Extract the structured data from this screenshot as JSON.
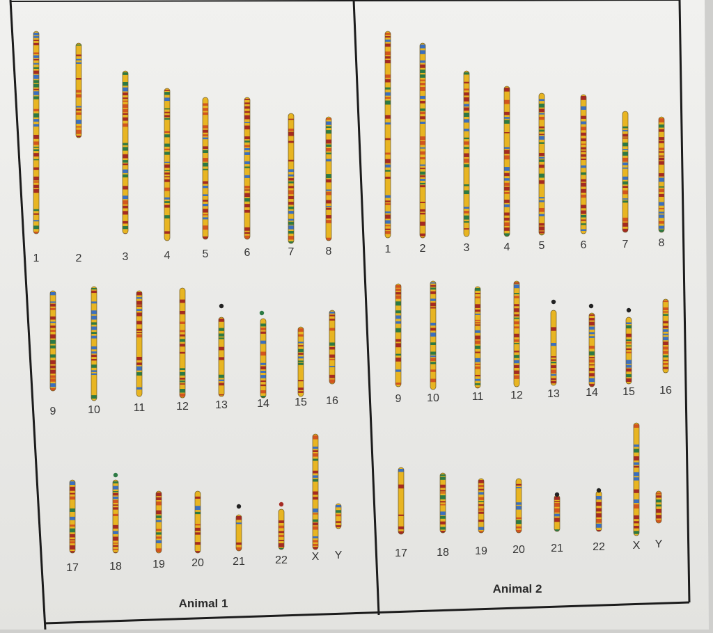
{
  "colors": {
    "paper": "#ececea",
    "frame": "#1c1c1c",
    "label": "#333333",
    "band_palette": [
      "#e8b522",
      "#a52a22",
      "#2c7a44",
      "#3b6fbf",
      "#d2551f",
      "#e8b522",
      "#a52a22"
    ]
  },
  "panels": [
    {
      "title": "Animal 1",
      "chromosomes": [
        {
          "label": "1"
        },
        {
          "label": "2"
        },
        {
          "label": "3"
        },
        {
          "label": "4"
        },
        {
          "label": "5"
        },
        {
          "label": "6"
        },
        {
          "label": "7"
        },
        {
          "label": "8"
        },
        {
          "label": "9"
        },
        {
          "label": "10"
        },
        {
          "label": "11"
        },
        {
          "label": "12"
        },
        {
          "label": "13"
        },
        {
          "label": "14"
        },
        {
          "label": "15"
        },
        {
          "label": "16"
        },
        {
          "label": "17"
        },
        {
          "label": "18"
        },
        {
          "label": "19"
        },
        {
          "label": "20"
        },
        {
          "label": "21"
        },
        {
          "label": "22"
        },
        {
          "label": "X"
        },
        {
          "label": "Y"
        }
      ]
    },
    {
      "title": "Animal 2",
      "chromosomes": [
        {
          "label": "1"
        },
        {
          "label": "2"
        },
        {
          "label": "3"
        },
        {
          "label": "4"
        },
        {
          "label": "5"
        },
        {
          "label": "6"
        },
        {
          "label": "7"
        },
        {
          "label": "8"
        },
        {
          "label": "9"
        },
        {
          "label": "10"
        },
        {
          "label": "11"
        },
        {
          "label": "12"
        },
        {
          "label": "13"
        },
        {
          "label": "14"
        },
        {
          "label": "15"
        },
        {
          "label": "16"
        },
        {
          "label": "17"
        },
        {
          "label": "18"
        },
        {
          "label": "19"
        },
        {
          "label": "20"
        },
        {
          "label": "21"
        },
        {
          "label": "22"
        },
        {
          "label": "X"
        },
        {
          "label": "Y"
        }
      ]
    }
  ]
}
